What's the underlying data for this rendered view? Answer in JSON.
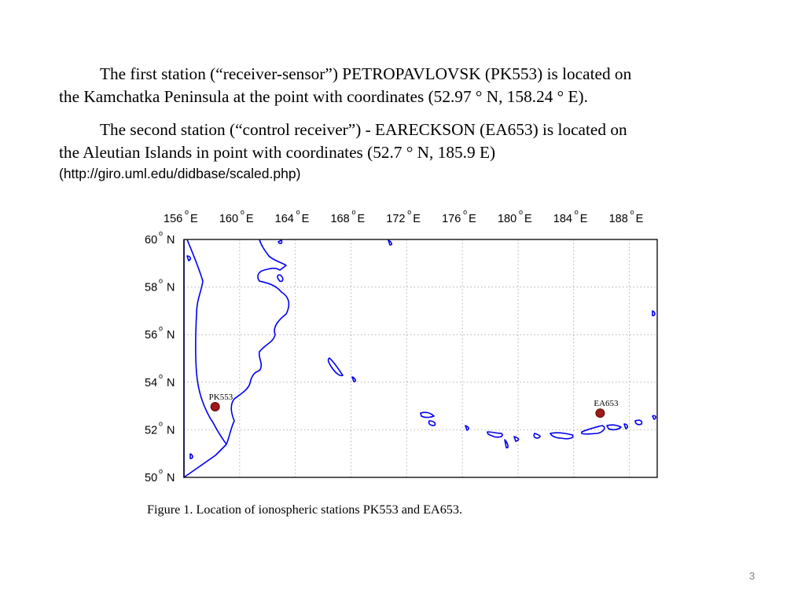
{
  "paragraph1": {
    "line1": "The first station (“receiver-sensor”) PETROPAVLOVSK (PK553) is located on",
    "line2": "the Kamchatka Peninsula at the point with coordinates (52.97 ° N, 158.24 ° E)."
  },
  "paragraph2": {
    "line1": "The second station (“control receiver”) - EARECKSON (EA653) is located on",
    "line2": "the Aleutian Islands in point with coordinates (52.7 ° N, 185.9 E)"
  },
  "source_url": "(http://giro.uml.edu/didbase/scaled.php)",
  "map": {
    "lon_range": [
      156,
      190
    ],
    "lat_range": [
      50,
      60
    ],
    "grid": true,
    "line_color": "#0000ee",
    "marker_color": "#a01818",
    "lon_ticks": [
      {
        "value": 156,
        "label": "156",
        "unit": "E"
      },
      {
        "value": 160,
        "label": "160",
        "unit": "E"
      },
      {
        "value": 164,
        "label": "164",
        "unit": "E"
      },
      {
        "value": 168,
        "label": "168",
        "unit": "E"
      },
      {
        "value": 172,
        "label": "172",
        "unit": "E"
      },
      {
        "value": 176,
        "label": "176",
        "unit": "E"
      },
      {
        "value": 180,
        "label": "180",
        "unit": "E"
      },
      {
        "value": 184,
        "label": "184",
        "unit": "E"
      },
      {
        "value": 188,
        "label": "188",
        "unit": "E"
      }
    ],
    "lat_ticks": [
      {
        "value": 60,
        "label": "60",
        "unit": "N"
      },
      {
        "value": 58,
        "label": "58",
        "unit": "N"
      },
      {
        "value": 56,
        "label": "56",
        "unit": "N"
      },
      {
        "value": 54,
        "label": "54",
        "unit": "N"
      },
      {
        "value": 52,
        "label": "52",
        "unit": "N"
      },
      {
        "value": 50,
        "label": "50",
        "unit": "N"
      }
    ],
    "degree_symbol": "o",
    "stations": [
      {
        "code": "PK553",
        "lat": 52.97,
        "lon": 158.24
      },
      {
        "code": "EA653",
        "lat": 52.7,
        "lon": 185.9
      }
    ]
  },
  "caption": "Figure 1. Location of ionospheric stations PK553 and EA653.",
  "page_number": "3"
}
